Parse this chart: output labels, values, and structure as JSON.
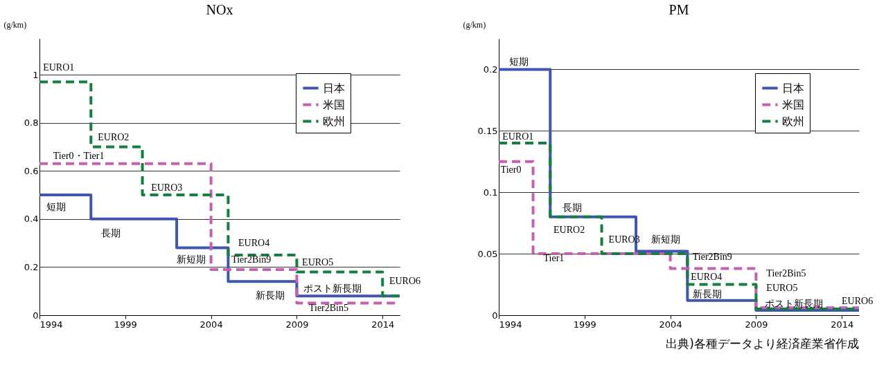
{
  "chart_data": [
    {
      "type": "step",
      "title": "NOx",
      "ylabel": "(g/km)",
      "xlim": [
        1994,
        2015
      ],
      "xticks": [
        1994,
        1999,
        2004,
        2009,
        2014
      ],
      "ylim": [
        0,
        1.15
      ],
      "yticks": [
        0,
        0.2,
        0.4,
        0.6,
        0.8,
        1
      ],
      "grid": "y",
      "legend": "top right",
      "series": [
        {
          "name": "日本",
          "color": "#4055b0",
          "line_style": "solid",
          "x": [
            1994,
            1997,
            2002,
            2005,
            2009,
            2015
          ],
          "values": [
            0.5,
            0.4,
            0.28,
            0.14,
            0.08,
            0.08
          ]
        },
        {
          "name": "米国",
          "color": "#c75fb0",
          "line_style": "dashed",
          "x": [
            1994,
            2004,
            2009,
            2015
          ],
          "values": [
            0.63,
            0.19,
            0.05,
            0.05
          ]
        },
        {
          "name": "欧州",
          "color": "#138040",
          "line_style": "dashed",
          "x": [
            1994,
            1997,
            2000,
            2005,
            2009,
            2014,
            2015
          ],
          "values": [
            0.97,
            0.7,
            0.5,
            0.25,
            0.18,
            0.08,
            0.08
          ]
        }
      ],
      "annotations": [
        "EURO1",
        "EURO2",
        "Tier0・Tier1",
        "EURO3",
        "短期",
        "長期",
        "新短期",
        "EURO4",
        "Tier2Bin9",
        "EURO5",
        "ポスト新長期",
        "新長期",
        "Tier2Bin5",
        "EURO6"
      ]
    },
    {
      "type": "step",
      "title": "PM",
      "ylabel": "(g/km)",
      "xlim": [
        1994,
        2015
      ],
      "xticks": [
        1994,
        1999,
        2004,
        2009,
        2014
      ],
      "ylim": [
        0,
        0.225
      ],
      "yticks": [
        0,
        0.05,
        0.1,
        0.15,
        0.2
      ],
      "grid": "y",
      "legend": "top right",
      "series": [
        {
          "name": "日本",
          "color": "#4055b0",
          "line_style": "solid",
          "x": [
            1994,
            1997,
            2002,
            2005,
            2009,
            2015
          ],
          "values": [
            0.2,
            0.08,
            0.052,
            0.012,
            0.004,
            0.004
          ]
        },
        {
          "name": "米国",
          "color": "#c75fb0",
          "line_style": "dashed",
          "x": [
            1994,
            1996,
            2004,
            2009,
            2015
          ],
          "values": [
            0.125,
            0.05,
            0.038,
            0.006,
            0.006
          ]
        },
        {
          "name": "欧州",
          "color": "#138040",
          "line_style": "dashed",
          "x": [
            1994,
            1997,
            2000,
            2005,
            2009,
            2015
          ],
          "values": [
            0.14,
            0.08,
            0.05,
            0.025,
            0.005,
            0.005
          ]
        }
      ],
      "annotations": [
        "短期",
        "EURO1",
        "Tier0",
        "長期",
        "EURO2",
        "EURO3",
        "新短期",
        "Tier1",
        "Tier2Bin9",
        "EURO4",
        "新長期",
        "Tier2Bin5",
        "EURO5",
        "ポスト新長期",
        "EURO6",
        "出典)各種データより経済産業省作成"
      ]
    }
  ]
}
